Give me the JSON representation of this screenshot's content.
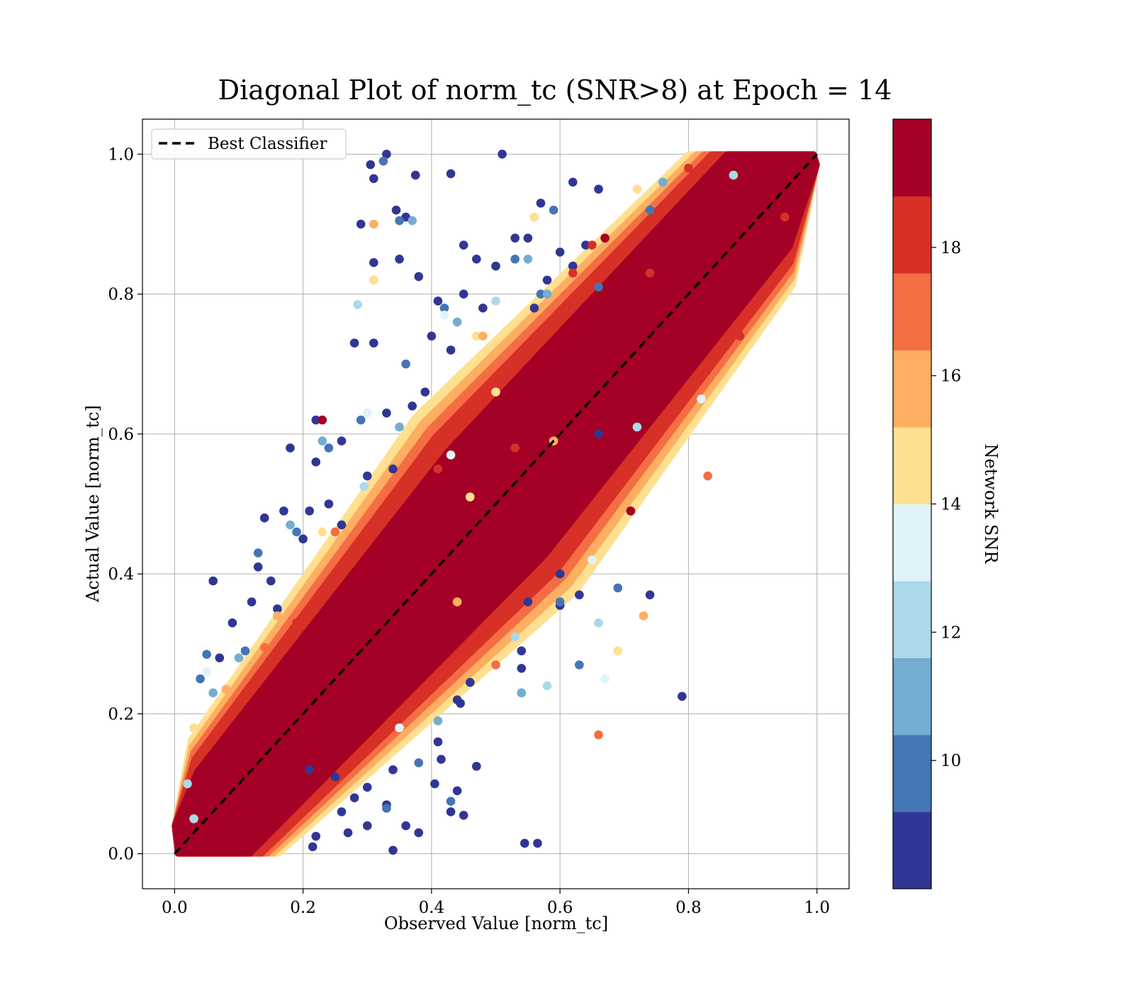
{
  "chart_data": {
    "type": "scatter",
    "title": "Diagonal Plot of norm_tc (SNR>8) at Epoch = 14",
    "xlabel": "Observed Value [norm_tc]",
    "ylabel": "Actual Value [norm_tc]",
    "xlim": [
      -0.05,
      1.05
    ],
    "ylim": [
      -0.05,
      1.05
    ],
    "xticks": [
      "0.0",
      "0.2",
      "0.4",
      "0.6",
      "0.8",
      "1.0"
    ],
    "yticks": [
      "0.0",
      "0.2",
      "0.4",
      "0.6",
      "0.8",
      "1.0"
    ],
    "grid": true,
    "legend": {
      "position": "upper-left",
      "label": "Best Classifier"
    },
    "reference_line": {
      "name": "Best Classifier",
      "x": [
        0,
        1
      ],
      "y": [
        0,
        1
      ],
      "style": "dashed",
      "color": "#000000"
    },
    "colorbar": {
      "label": "Network SNR",
      "range": [
        8,
        20
      ],
      "ticks": [
        "10",
        "12",
        "14",
        "16",
        "18"
      ],
      "colors": [
        "#313695",
        "#4575b4",
        "#74add1",
        "#abd9e9",
        "#e0f3f8",
        "#fee090",
        "#fdae61",
        "#f46d43",
        "#d73027",
        "#a50026"
      ]
    },
    "series": [
      {
        "points": [
          [
            0.33,
            1.0
          ],
          [
            0.51,
            1.0
          ],
          [
            0.305,
            0.985
          ],
          [
            0.31,
            0.965
          ],
          [
            0.375,
            0.97
          ],
          [
            0.43,
            0.972
          ],
          [
            0.29,
            0.9
          ],
          [
            0.345,
            0.92
          ],
          [
            0.36,
            0.91
          ],
          [
            0.31,
            0.845
          ],
          [
            0.35,
            0.85
          ],
          [
            0.38,
            0.825
          ],
          [
            0.53,
            0.88
          ],
          [
            0.57,
            0.93
          ],
          [
            0.62,
            0.96
          ],
          [
            0.66,
            0.95
          ],
          [
            0.6,
            0.86
          ],
          [
            0.64,
            0.87
          ],
          [
            0.45,
            0.87
          ],
          [
            0.47,
            0.85
          ],
          [
            0.5,
            0.84
          ],
          [
            0.55,
            0.88
          ],
          [
            0.58,
            0.82
          ],
          [
            0.62,
            0.84
          ],
          [
            0.56,
            0.78
          ],
          [
            0.45,
            0.8
          ],
          [
            0.48,
            0.78
          ],
          [
            0.41,
            0.79
          ],
          [
            0.4,
            0.74
          ],
          [
            0.43,
            0.72
          ],
          [
            0.31,
            0.73
          ],
          [
            0.28,
            0.73
          ],
          [
            0.39,
            0.66
          ],
          [
            0.37,
            0.64
          ],
          [
            0.33,
            0.63
          ],
          [
            0.22,
            0.62
          ],
          [
            0.18,
            0.58
          ],
          [
            0.22,
            0.56
          ],
          [
            0.26,
            0.59
          ],
          [
            0.3,
            0.54
          ],
          [
            0.34,
            0.55
          ],
          [
            0.14,
            0.48
          ],
          [
            0.17,
            0.49
          ],
          [
            0.21,
            0.49
          ],
          [
            0.24,
            0.5
          ],
          [
            0.26,
            0.47
          ],
          [
            0.13,
            0.41
          ],
          [
            0.15,
            0.39
          ],
          [
            0.2,
            0.45
          ],
          [
            0.09,
            0.33
          ],
          [
            0.12,
            0.36
          ],
          [
            0.16,
            0.35
          ],
          [
            0.06,
            0.39
          ],
          [
            0.07,
            0.28
          ],
          [
            0.63,
            0.37
          ],
          [
            0.6,
            0.355
          ],
          [
            0.6,
            0.4
          ],
          [
            0.74,
            0.37
          ],
          [
            0.71,
            0.49
          ],
          [
            0.79,
            0.225
          ],
          [
            0.55,
            0.36
          ],
          [
            0.54,
            0.29
          ],
          [
            0.54,
            0.265
          ],
          [
            0.46,
            0.245
          ],
          [
            0.44,
            0.22
          ],
          [
            0.445,
            0.215
          ],
          [
            0.41,
            0.16
          ],
          [
            0.415,
            0.135
          ],
          [
            0.47,
            0.125
          ],
          [
            0.44,
            0.09
          ],
          [
            0.405,
            0.1
          ],
          [
            0.34,
            0.12
          ],
          [
            0.36,
            0.04
          ],
          [
            0.38,
            0.03
          ],
          [
            0.45,
            0.055
          ],
          [
            0.43,
            0.06
          ],
          [
            0.33,
            0.07
          ],
          [
            0.34,
            0.005
          ],
          [
            0.545,
            0.015
          ],
          [
            0.565,
            0.015
          ],
          [
            0.3,
            0.04
          ],
          [
            0.27,
            0.03
          ],
          [
            0.22,
            0.025
          ],
          [
            0.215,
            0.01
          ],
          [
            0.26,
            0.06
          ],
          [
            0.28,
            0.08
          ],
          [
            0.3,
            0.095
          ],
          [
            0.25,
            0.11
          ],
          [
            0.21,
            0.12
          ],
          [
            0.66,
            0.6
          ]
        ]
      },
      {
        "points": [
          [
            0.325,
            0.99
          ],
          [
            0.35,
            0.905
          ],
          [
            0.59,
            0.92
          ],
          [
            0.53,
            0.85
          ],
          [
            0.57,
            0.8
          ],
          [
            0.42,
            0.78
          ],
          [
            0.36,
            0.7
          ],
          [
            0.29,
            0.62
          ],
          [
            0.24,
            0.58
          ],
          [
            0.19,
            0.46
          ],
          [
            0.13,
            0.43
          ],
          [
            0.11,
            0.29
          ],
          [
            0.05,
            0.285
          ],
          [
            0.04,
            0.25
          ],
          [
            0.38,
            0.13
          ],
          [
            0.33,
            0.065
          ],
          [
            0.6,
            0.36
          ],
          [
            0.69,
            0.38
          ],
          [
            0.63,
            0.27
          ],
          [
            0.43,
            0.075
          ],
          [
            0.66,
            0.81
          ],
          [
            0.74,
            0.92
          ],
          [
            0.54,
            0.23
          ]
        ]
      },
      {
        "points": [
          [
            0.37,
            0.905
          ],
          [
            0.55,
            0.85
          ],
          [
            0.58,
            0.8
          ],
          [
            0.44,
            0.76
          ],
          [
            0.35,
            0.61
          ],
          [
            0.23,
            0.59
          ],
          [
            0.18,
            0.47
          ],
          [
            0.1,
            0.28
          ],
          [
            0.06,
            0.23
          ],
          [
            0.54,
            0.23
          ],
          [
            0.41,
            0.19
          ],
          [
            0.76,
            0.96
          ]
        ]
      },
      {
        "points": [
          [
            0.285,
            0.785
          ],
          [
            0.295,
            0.525
          ],
          [
            0.58,
            0.24
          ],
          [
            0.66,
            0.33
          ],
          [
            0.5,
            0.79
          ],
          [
            0.72,
            0.61
          ],
          [
            0.03,
            0.05
          ],
          [
            0.02,
            0.1
          ],
          [
            0.53,
            0.31
          ],
          [
            0.87,
            0.97
          ]
        ]
      },
      {
        "points": [
          [
            0.42,
            0.77
          ],
          [
            0.3,
            0.63
          ],
          [
            0.82,
            0.65
          ],
          [
            0.05,
            0.26
          ],
          [
            0.65,
            0.42
          ],
          [
            0.43,
            0.57
          ],
          [
            0.67,
            0.25
          ],
          [
            0.35,
            0.18
          ]
        ]
      },
      {
        "points": [
          [
            0.31,
            0.82
          ],
          [
            0.56,
            0.91
          ],
          [
            0.72,
            0.95
          ],
          [
            0.47,
            0.74
          ],
          [
            0.23,
            0.46
          ],
          [
            0.03,
            0.18
          ],
          [
            0.69,
            0.29
          ],
          [
            0.46,
            0.51
          ],
          [
            0.5,
            0.66
          ]
        ]
      },
      {
        "points": [
          [
            0.31,
            0.9
          ],
          [
            0.48,
            0.74
          ],
          [
            0.16,
            0.34
          ],
          [
            0.08,
            0.235
          ],
          [
            0.59,
            0.59
          ],
          [
            0.44,
            0.36
          ],
          [
            0.73,
            0.34
          ]
        ]
      },
      {
        "points": [
          [
            0.43,
            0.635
          ],
          [
            0.25,
            0.46
          ],
          [
            0.14,
            0.295
          ],
          [
            0.5,
            0.27
          ],
          [
            0.83,
            0.54
          ],
          [
            0.66,
            0.17
          ]
        ]
      },
      {
        "points": [
          [
            0.65,
            0.87
          ],
          [
            0.62,
            0.83
          ],
          [
            0.41,
            0.55
          ],
          [
            0.19,
            0.33
          ],
          [
            0.53,
            0.58
          ],
          [
            0.8,
            0.98
          ],
          [
            0.74,
            0.83
          ],
          [
            0.88,
            0.74
          ],
          [
            0.95,
            0.91
          ]
        ]
      },
      {
        "points": [
          [
            0.23,
            0.62
          ],
          [
            0.71,
            0.49
          ],
          [
            0.67,
            0.88
          ],
          [
            0.98,
            0.99
          ]
        ]
      }
    ]
  }
}
